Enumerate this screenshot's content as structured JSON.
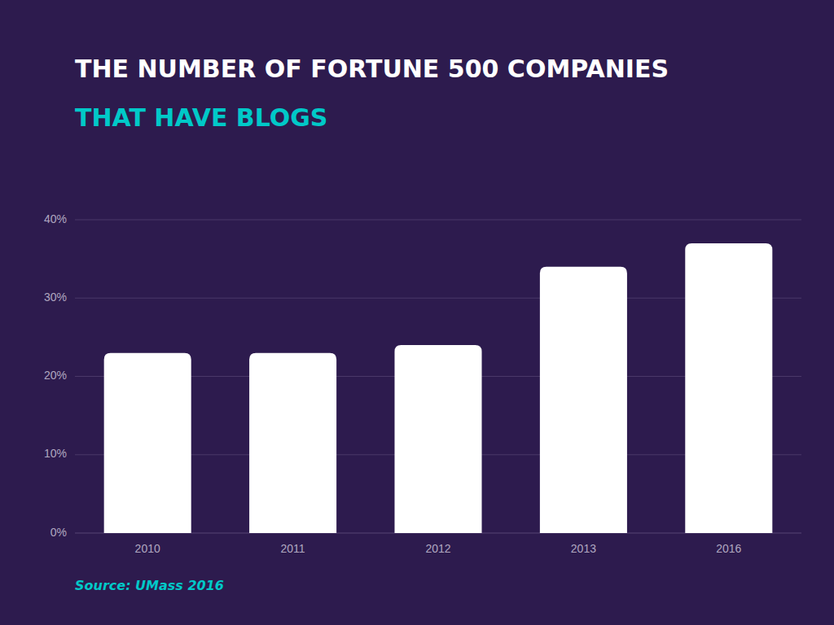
{
  "chart_data": {
    "type": "bar",
    "title": "THE NUMBER OF FORTUNE 500 COMPANIES",
    "subtitle": "THAT HAVE BLOGS",
    "source": "Source: UMass 2016",
    "categories": [
      "2010",
      "2011",
      "2012",
      "2013",
      "2016"
    ],
    "values": [
      23,
      23,
      24,
      34,
      37
    ],
    "color": "#ffffff",
    "ylim": [
      0,
      40
    ],
    "yticks": [
      {
        "value": 0,
        "label": "0%"
      },
      {
        "value": 10,
        "label": "10%"
      },
      {
        "value": 20,
        "label": "20%"
      },
      {
        "value": 30,
        "label": "30%"
      },
      {
        "value": 40,
        "label": "40%"
      }
    ],
    "grid": true
  }
}
